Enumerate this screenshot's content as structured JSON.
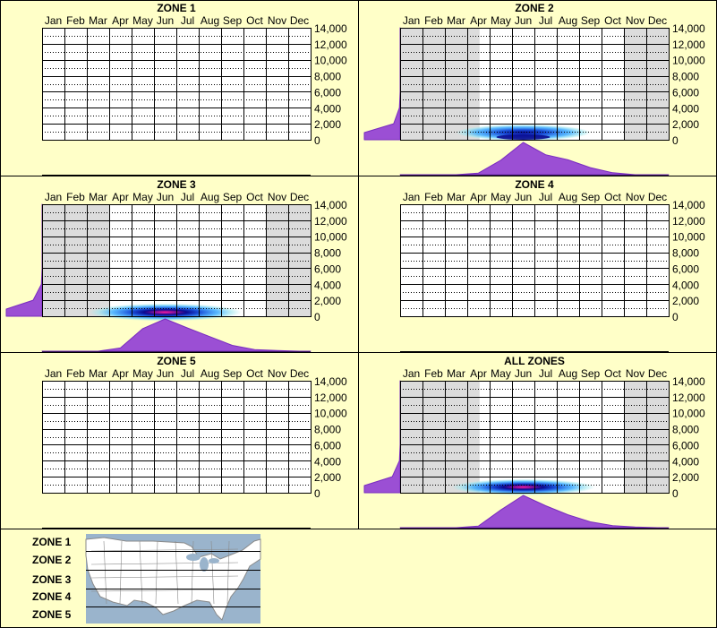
{
  "colors": {
    "background": "#ffffc8",
    "grid": "#000000",
    "shade": "#dcdcdc",
    "density_fill": "#9b4fd4",
    "density_stroke": "#7a2cc0",
    "heat_low": "#9fe8f0",
    "heat_mid": "#1a4fd8",
    "heat_core": "#0a0a90",
    "heat_peak": "#ff1aa0"
  },
  "chart_data": [
    {
      "type": "heatmap",
      "title": "ZONE 1",
      "categories": [
        "Jan",
        "Feb",
        "Mar",
        "Apr",
        "May",
        "Jun",
        "Jul",
        "Aug",
        "Sep",
        "Oct",
        "Nov",
        "Dec"
      ],
      "y_ticks": [
        "14,000",
        "12,000",
        "10,000",
        "8,000",
        "6,000",
        "4,000",
        "2,000",
        "0"
      ],
      "ylim": [
        0,
        14000
      ],
      "has_data": false,
      "active_months": [],
      "month_density": [],
      "elevation_density": []
    },
    {
      "type": "heatmap",
      "title": "ZONE 2",
      "categories": [
        "Jan",
        "Feb",
        "Mar",
        "Apr",
        "May",
        "Jun",
        "Jul",
        "Aug",
        "Sep",
        "Oct",
        "Nov",
        "Dec"
      ],
      "y_ticks": [
        "14,000",
        "12,000",
        "10,000",
        "8,000",
        "6,000",
        "4,000",
        "2,000",
        "0"
      ],
      "ylim": [
        0,
        14000
      ],
      "has_data": true,
      "active_months": [
        4,
        5,
        6,
        7,
        8,
        9
      ],
      "partial_months": [
        3
      ],
      "heat_center_month": 5.0,
      "heat_spread_month": 3.0,
      "heat_center_elevation": 900,
      "heat_spread_elevation": 1000,
      "heat_peak_level": 0.85,
      "month_density": [
        0,
        0,
        0,
        0.05,
        0.45,
        1.0,
        0.62,
        0.46,
        0.22,
        0.06,
        0,
        0
      ],
      "elevation_density": [
        1.0,
        0.18,
        0.02,
        0,
        0,
        0,
        0,
        0
      ]
    },
    {
      "type": "heatmap",
      "title": "ZONE 3",
      "categories": [
        "Jan",
        "Feb",
        "Mar",
        "Apr",
        "May",
        "Jun",
        "Jul",
        "Aug",
        "Sep",
        "Oct",
        "Nov",
        "Dec"
      ],
      "y_ticks": [
        "14,000",
        "12,000",
        "10,000",
        "8,000",
        "6,000",
        "4,000",
        "2,000",
        "0"
      ],
      "ylim": [
        0,
        14000
      ],
      "has_data": true,
      "active_months": [
        3,
        4,
        5,
        6,
        7,
        8,
        9
      ],
      "partial_months": [],
      "heat_center_month": 5.0,
      "heat_spread_month": 3.4,
      "heat_center_elevation": 500,
      "heat_spread_elevation": 1100,
      "heat_peak_level": 1.0,
      "month_density": [
        0,
        0,
        0,
        0.1,
        0.7,
        1.0,
        0.72,
        0.45,
        0.18,
        0.05,
        0.02,
        0
      ],
      "elevation_density": [
        1.0,
        0.25,
        0.02,
        0,
        0,
        0,
        0,
        0
      ]
    },
    {
      "type": "heatmap",
      "title": "ZONE 4",
      "categories": [
        "Jan",
        "Feb",
        "Mar",
        "Apr",
        "May",
        "Jun",
        "Jul",
        "Aug",
        "Sep",
        "Oct",
        "Nov",
        "Dec"
      ],
      "y_ticks": [
        "14,000",
        "12,000",
        "10,000",
        "8,000",
        "6,000",
        "4,000",
        "2,000",
        "0"
      ],
      "ylim": [
        0,
        14000
      ],
      "has_data": false,
      "active_months": [],
      "month_density": [],
      "elevation_density": []
    },
    {
      "type": "heatmap",
      "title": "ZONE 5",
      "categories": [
        "Jan",
        "Feb",
        "Mar",
        "Apr",
        "May",
        "Jun",
        "Jul",
        "Aug",
        "Sep",
        "Oct",
        "Nov",
        "Dec"
      ],
      "y_ticks": [
        "14,000",
        "12,000",
        "10,000",
        "8,000",
        "6,000",
        "4,000",
        "2,000",
        "0"
      ],
      "ylim": [
        0,
        14000
      ],
      "has_data": false,
      "active_months": [],
      "month_density": [],
      "elevation_density": []
    },
    {
      "type": "heatmap",
      "title": "ALL ZONES",
      "categories": [
        "Jan",
        "Feb",
        "Mar",
        "Apr",
        "May",
        "Jun",
        "Jul",
        "Aug",
        "Sep",
        "Oct",
        "Nov",
        "Dec"
      ],
      "y_ticks": [
        "14,000",
        "12,000",
        "10,000",
        "8,000",
        "6,000",
        "4,000",
        "2,000",
        "0"
      ],
      "ylim": [
        0,
        14000
      ],
      "has_data": true,
      "active_months": [
        4,
        5,
        6,
        7,
        8,
        9
      ],
      "partial_months": [
        3
      ],
      "heat_center_month": 5.0,
      "heat_spread_month": 3.2,
      "heat_center_elevation": 700,
      "heat_spread_elevation": 1000,
      "heat_peak_level": 1.0,
      "month_density": [
        0,
        0,
        0,
        0.05,
        0.55,
        1.0,
        0.68,
        0.4,
        0.18,
        0.06,
        0.02,
        0
      ],
      "elevation_density": [
        1.0,
        0.22,
        0.02,
        0,
        0,
        0,
        0,
        0
      ]
    }
  ],
  "legend": {
    "zones": [
      "ZONE 1",
      "ZONE 2",
      "ZONE 3",
      "ZONE 4",
      "ZONE 5"
    ],
    "map_land": "#ffffff",
    "map_water": "#9ab4cc",
    "map_border": "#8a8a8a"
  }
}
